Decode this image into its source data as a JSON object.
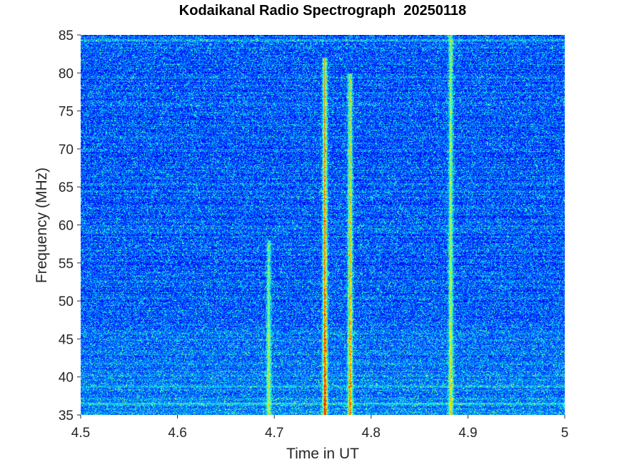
{
  "chart_data": {
    "type": "heatmap",
    "title": "Kodaikanal Radio Spectrograph  20250118",
    "xlabel": "Time in UT",
    "ylabel": "Frequency (MHz)",
    "xlim": [
      4.5,
      5
    ],
    "ylim": [
      35,
      85
    ],
    "x_ticks": [
      "4.5",
      "4.6",
      "4.7",
      "4.8",
      "4.9",
      "5"
    ],
    "y_ticks": [
      "35",
      "40",
      "45",
      "50",
      "55",
      "60",
      "65",
      "70",
      "75",
      "80",
      "85"
    ],
    "colormap": "jet",
    "background_intensity": 0.2,
    "bursts": [
      {
        "time": 4.694,
        "freq_low": 35,
        "freq_high": 58,
        "intensity": 0.55
      },
      {
        "time": 4.752,
        "freq_low": 35,
        "freq_high": 82,
        "intensity": 0.85
      },
      {
        "time": 4.778,
        "freq_low": 35,
        "freq_high": 80,
        "intensity": 0.75
      },
      {
        "time": 4.882,
        "freq_low": 35,
        "freq_high": 85,
        "intensity": 0.6
      }
    ],
    "interference_bands_mhz": [
      36.5,
      38.8,
      84.3
    ]
  },
  "colors": {
    "background": "#ffffff",
    "axis_text": "#262626"
  }
}
